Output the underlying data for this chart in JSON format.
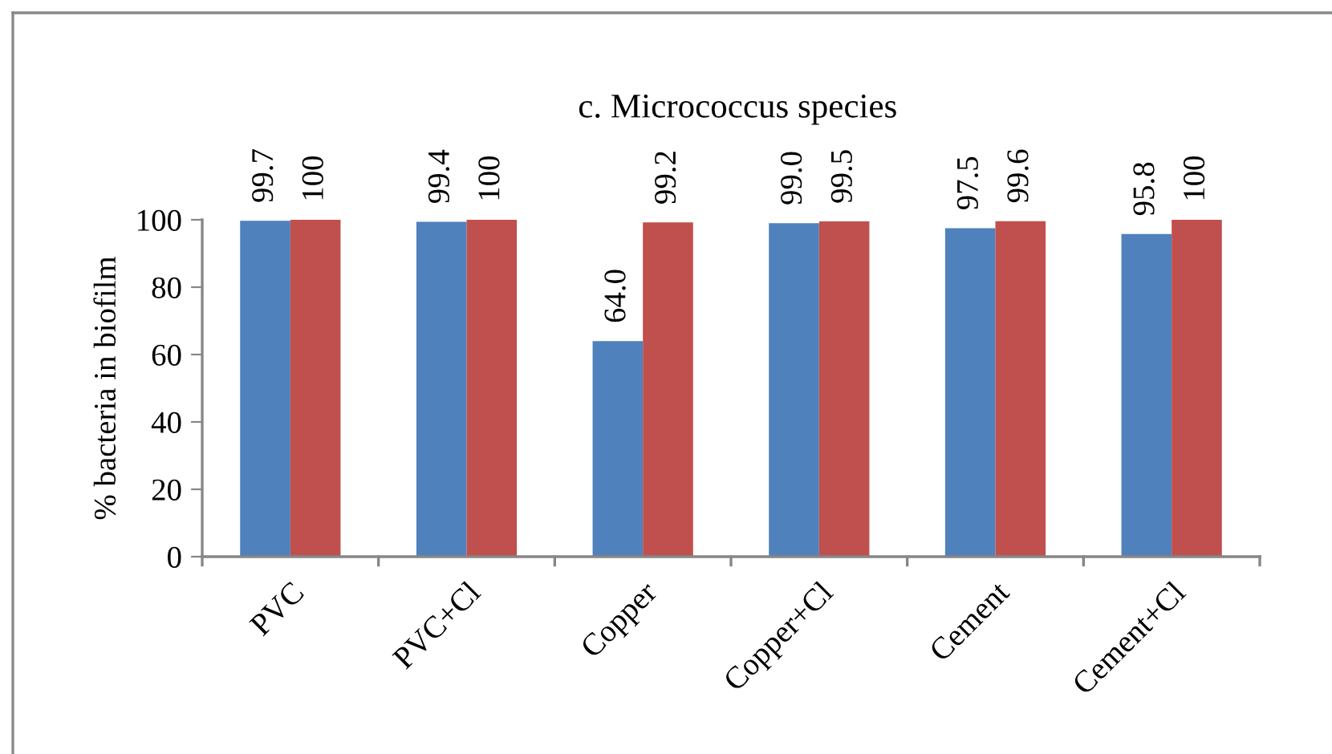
{
  "chart_data": {
    "type": "bar",
    "title": "c. Micrococcus species",
    "ylabel": "% bacteria in biofilm",
    "categories": [
      "PVC",
      "PVC+Cl",
      "Copper",
      "Copper+Cl",
      "Cement",
      "Cement+Cl"
    ],
    "series": [
      {
        "color": "#4f81bd",
        "values": [
          99.7,
          99.4,
          64.0,
          99.0,
          97.5,
          95.8
        ],
        "value_labels": [
          "99.7",
          "99.4",
          "64.0",
          "99.0",
          "97.5",
          "95.8"
        ]
      },
      {
        "color": "#c0504d",
        "values": [
          100,
          100,
          99.2,
          99.5,
          99.6,
          100
        ],
        "value_labels": [
          "100",
          "100",
          "99.2",
          "99.5",
          "99.6",
          "100"
        ]
      }
    ],
    "ylim": [
      0,
      100
    ],
    "yticks": [
      0,
      20,
      40,
      60,
      80,
      100
    ],
    "grid": false,
    "legend": false
  }
}
